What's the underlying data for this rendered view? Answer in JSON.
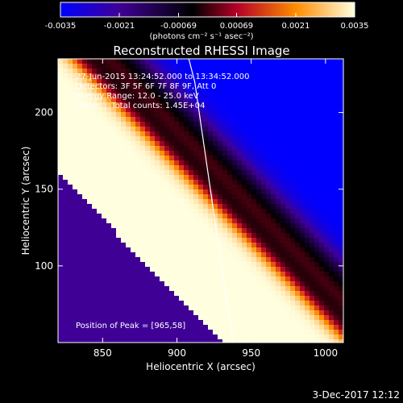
{
  "chart_data": {
    "type": "heatmap",
    "title": "Reconstructed RHESSI Image",
    "xlabel": "Heliocentric X (arcsec)",
    "ylabel": "Heliocentric Y (arcsec)",
    "xlim": [
      820,
      1012
    ],
    "ylim": [
      50,
      235
    ],
    "x_ticks": [
      850,
      900,
      950,
      1000
    ],
    "y_ticks": [
      100,
      150,
      200
    ],
    "colorbar": {
      "ticks": [
        "-0.0035",
        "-0.0021",
        "-0.00069",
        "0.00069",
        "0.0021",
        "0.0035"
      ],
      "values": [
        -0.0035,
        -0.0021,
        -0.00069,
        0.00069,
        0.0021,
        0.0035
      ],
      "unit_label": "(photons cm⁻² s⁻¹ asec⁻²)",
      "colors": [
        "#0000ff",
        "#3f0096",
        "#000000",
        "#b40028",
        "#ff8c00",
        "#ffffe0"
      ]
    },
    "info_lines": [
      "27-Jun-2015 13:24:52.000 to 13:34:52.000",
      "Detectors: 3F 5F 6F 7F 8F 9F, Att 0",
      "Energy Range: 12.0 - 25.0 keV",
      "Clean     Total counts: 1.45E+04"
    ],
    "peak_label": "Position of Peak = [965,58]",
    "peak": [
      965,
      58
    ],
    "limb": [
      [
        938,
        50
      ],
      [
        930,
        100
      ],
      [
        924,
        140
      ],
      [
        918,
        180
      ],
      [
        912,
        220
      ],
      [
        908,
        235
      ]
    ],
    "bands": [
      {
        "value": 0.0035,
        "width": 40
      },
      {
        "value": -0.0006,
        "width": 10
      },
      {
        "value": 0.0009,
        "width": 26
      },
      {
        "value": -0.0035,
        "width": 42
      }
    ]
  },
  "footer": {
    "date": "3-Dec-2017 12:12"
  }
}
